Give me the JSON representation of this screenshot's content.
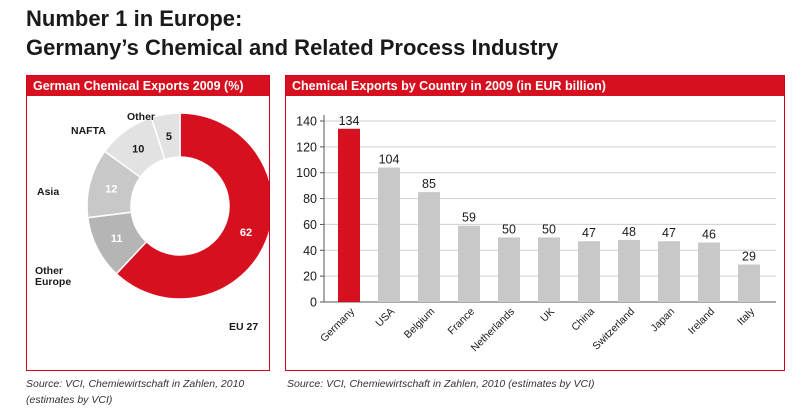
{
  "header": {
    "title_line1": "Number 1 in Europe:",
    "title_line2": "Germany’s Chemical and Related Process Industry"
  },
  "colors": {
    "accent": "#d7101f",
    "gray": "#c8c8c8",
    "light_gray": "#e2e2e2",
    "mid_gray": "#b5b5b5"
  },
  "chart_data": [
    {
      "type": "pie",
      "title": "German Chemical Exports 2009 (%)",
      "donut": true,
      "slices": [
        {
          "label": "EU 27",
          "value": 62
        },
        {
          "label": "Other Europe",
          "value": 11
        },
        {
          "label": "Asia",
          "value": 12
        },
        {
          "label": "NAFTA",
          "value": 10
        },
        {
          "label": "Other",
          "value": 5
        }
      ],
      "source": "Source: VCI, Chemiewirtschaft in Zahlen, 2010",
      "source_line2": "(estimates by VCI)"
    },
    {
      "type": "bar",
      "title": "Chemical Exports by Country in 2009 (in EUR billion)",
      "categories": [
        "Germany",
        "USA",
        "Belgium",
        "France",
        "Netherlands",
        "UK",
        "China",
        "Switzerland",
        "Japan",
        "Ireland",
        "Italy"
      ],
      "values": [
        134,
        104,
        85,
        59,
        50,
        50,
        47,
        48,
        47,
        46,
        29
      ],
      "highlight_index": 0,
      "ylim": [
        0,
        140
      ],
      "yticks": [
        0,
        20,
        40,
        60,
        80,
        100,
        120,
        140
      ],
      "grid": true,
      "xlabel": "",
      "ylabel": "",
      "source": "Source: VCI, Chemiewirtschaft in Zahlen, 2010 (estimates by VCI)"
    }
  ]
}
